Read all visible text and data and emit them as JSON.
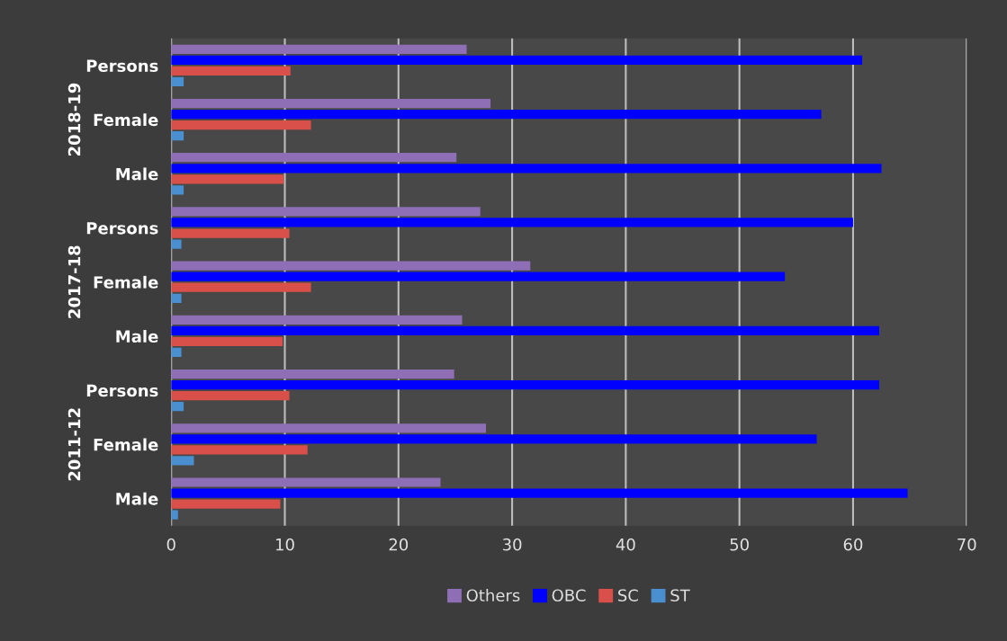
{
  "chart_data": {
    "type": "bar",
    "orientation": "horizontal",
    "categories": [
      "Persons",
      "Female",
      "Male",
      "Persons",
      "Female",
      "Male",
      "Persons",
      "Female",
      "Male"
    ],
    "series": [
      {
        "name": "Others",
        "color": "#8e6fb5",
        "values": [
          26.0,
          28.1,
          25.1,
          27.2,
          31.6,
          25.6,
          24.9,
          27.7,
          23.7
        ]
      },
      {
        "name": "OBC",
        "color": "#0000ff",
        "values": [
          60.8,
          57.2,
          62.5,
          60.0,
          54.0,
          62.3,
          62.3,
          56.8,
          64.8
        ]
      },
      {
        "name": "SC",
        "color": "#d9504a",
        "values": [
          10.5,
          12.3,
          9.9,
          10.4,
          12.3,
          9.8,
          10.4,
          12.0,
          9.6
        ]
      },
      {
        "name": "ST",
        "color": "#4a8fd0",
        "values": [
          1.1,
          1.1,
          1.1,
          0.9,
          0.9,
          0.9,
          1.1,
          2.0,
          0.6
        ]
      }
    ],
    "annotations": [
      "2018-19",
      "2017-18",
      "2011-12"
    ],
    "xlim": [
      0,
      70
    ],
    "xticks": [
      0,
      10,
      20,
      30,
      40,
      50,
      60,
      70
    ],
    "grid": "x",
    "legend": "bottom"
  }
}
